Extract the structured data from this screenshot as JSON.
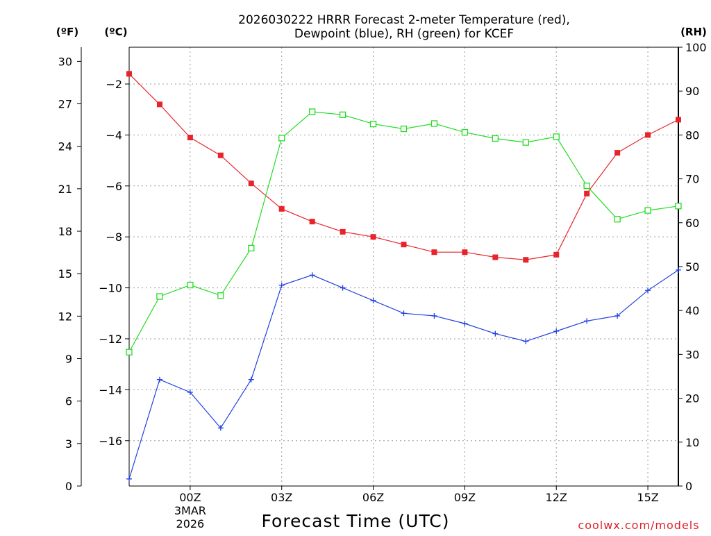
{
  "chart_data": {
    "type": "line",
    "title_line1": "2026030222 HRRR Forecast 2-meter Temperature (red),",
    "title_line2": "Dewpoint (blue), RH (green) for KCEF",
    "xlabel": "Forecast Time (UTC)",
    "credit": "coolwx.com/models",
    "unit_f": "(ºF)",
    "unit_c": "(ºC)",
    "unit_rh": "(RH)",
    "x_range": [
      0,
      18
    ],
    "x_ticks": [
      {
        "x": 2,
        "label": "00Z",
        "sub1": "3MAR",
        "sub2": "2026"
      },
      {
        "x": 5,
        "label": "03Z",
        "sub1": "",
        "sub2": ""
      },
      {
        "x": 8,
        "label": "06Z",
        "sub1": "",
        "sub2": ""
      },
      {
        "x": 11,
        "label": "09Z",
        "sub1": "",
        "sub2": ""
      },
      {
        "x": 14,
        "label": "12Z",
        "sub1": "",
        "sub2": ""
      },
      {
        "x": 17,
        "label": "15Z",
        "sub1": "",
        "sub2": ""
      }
    ],
    "axis_f": {
      "range": [
        0,
        31
      ],
      "ticks": [
        0,
        3,
        6,
        9,
        12,
        15,
        18,
        21,
        24,
        27,
        30
      ]
    },
    "axis_c": {
      "ticks": [
        -16,
        -14,
        -12,
        -10,
        -8,
        -6,
        -4,
        -2
      ]
    },
    "axis_rh": {
      "range": [
        0,
        100
      ],
      "ticks": [
        0,
        10,
        20,
        30,
        40,
        50,
        60,
        70,
        80,
        90,
        100
      ]
    },
    "grid": true,
    "series": [
      {
        "name": "Temperature",
        "unit": "C",
        "color": "#e8232a",
        "marker": "filled-square",
        "values": [
          -1.6,
          -2.8,
          -4.1,
          -4.8,
          -5.9,
          -6.9,
          -7.4,
          -7.8,
          -8.0,
          -8.3,
          -8.6,
          -8.6,
          -8.8,
          -8.9,
          -8.7,
          -6.3,
          -4.7,
          -4.0,
          -3.4
        ]
      },
      {
        "name": "Dewpoint",
        "unit": "C",
        "color": "#2040e0",
        "marker": "plus",
        "values": [
          -17.5,
          -13.6,
          -14.1,
          -15.5,
          -13.6,
          -9.9,
          -9.5,
          -10.0,
          -10.5,
          -11.0,
          -11.1,
          -11.4,
          -11.8,
          -12.1,
          -11.7,
          -11.3,
          -11.1,
          -10.1,
          -9.3
        ]
      },
      {
        "name": "RH",
        "unit": "%",
        "color": "#22dd22",
        "marker": "open-square",
        "values": [
          30.5,
          43.2,
          45.8,
          43.4,
          54.2,
          79.3,
          85.3,
          84.6,
          82.5,
          81.4,
          82.6,
          80.6,
          79.2,
          78.3,
          79.6,
          68.4,
          60.8,
          62.8,
          63.8
        ]
      }
    ]
  }
}
